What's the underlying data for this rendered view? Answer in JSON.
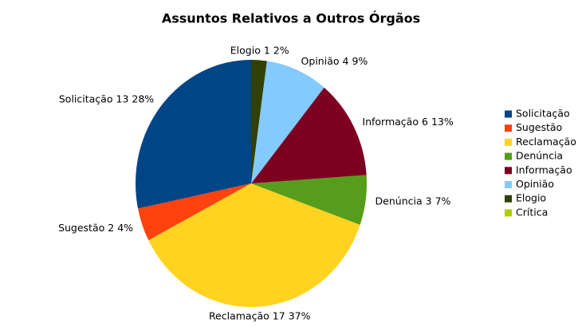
{
  "chart_data": {
    "type": "pie",
    "title": "Assuntos Relativos a Outros Órgãos",
    "categories": [
      "Solicitação",
      "Sugestão",
      "Reclamação",
      "Denúncia",
      "Informação",
      "Opinião",
      "Elogio",
      "Crítica"
    ],
    "values": [
      13,
      2,
      17,
      3,
      6,
      4,
      1,
      0
    ],
    "percent_labels": [
      "28%",
      "4%",
      "37%",
      "7%",
      "13%",
      "9%",
      "2%",
      null
    ],
    "colors": [
      "#004586",
      "#ff420e",
      "#ffd320",
      "#579d1c",
      "#7e0021",
      "#83caff",
      "#314004",
      "#aecf00"
    ],
    "legend": "right"
  }
}
